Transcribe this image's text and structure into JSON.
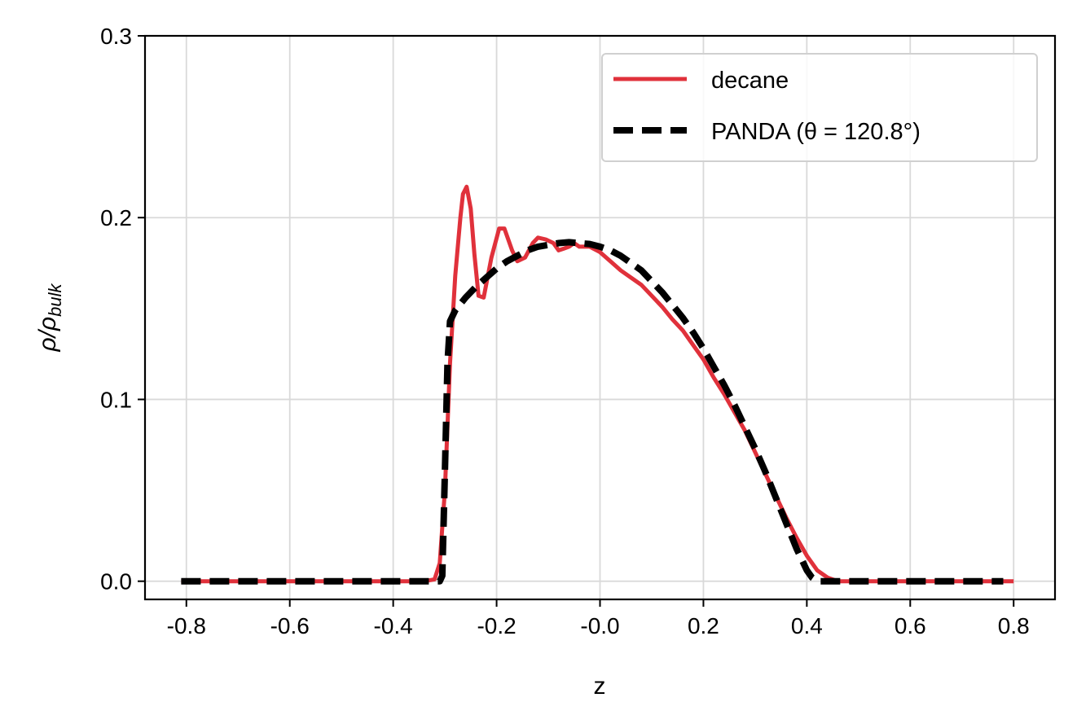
{
  "chart_data": {
    "type": "line",
    "xlabel": "z",
    "ylabel": {
      "main": "ρ/ρ",
      "sub": "bulk"
    },
    "xlim": [
      -0.88,
      0.88
    ],
    "ylim": [
      -0.01,
      0.3
    ],
    "xticks": [
      -0.8,
      -0.6,
      -0.4,
      -0.2,
      -0.0,
      0.2,
      0.4,
      0.6,
      0.8
    ],
    "xtick_labels": [
      "-0.8",
      "-0.6",
      "-0.4",
      "-0.2",
      "-0.0",
      "0.2",
      "0.4",
      "0.6",
      "0.8"
    ],
    "yticks": [
      0.0,
      0.1,
      0.2,
      0.3
    ],
    "ytick_labels": [
      "0.0",
      "0.1",
      "0.2",
      "0.3"
    ],
    "grid": true,
    "legend_position": "top-right",
    "series": [
      {
        "name": "decane",
        "color": "#e0313b",
        "style": "solid",
        "x": [
          -0.81,
          -0.34,
          -0.32,
          -0.31,
          -0.3,
          -0.29,
          -0.28,
          -0.27,
          -0.265,
          -0.258,
          -0.25,
          -0.243,
          -0.235,
          -0.225,
          -0.21,
          -0.195,
          -0.185,
          -0.17,
          -0.16,
          -0.145,
          -0.13,
          -0.12,
          -0.105,
          -0.09,
          -0.08,
          -0.07,
          -0.06,
          -0.05,
          -0.04,
          -0.02,
          0.0,
          0.02,
          0.04,
          0.06,
          0.08,
          0.1,
          0.12,
          0.14,
          0.16,
          0.18,
          0.2,
          0.22,
          0.24,
          0.26,
          0.28,
          0.3,
          0.32,
          0.34,
          0.36,
          0.38,
          0.4,
          0.42,
          0.44,
          0.46,
          0.48,
          0.8
        ],
        "y": [
          0.0,
          0.0,
          0.001,
          0.01,
          0.05,
          0.12,
          0.168,
          0.2,
          0.213,
          0.217,
          0.205,
          0.18,
          0.157,
          0.156,
          0.178,
          0.194,
          0.194,
          0.182,
          0.176,
          0.178,
          0.186,
          0.189,
          0.188,
          0.186,
          0.182,
          0.183,
          0.184,
          0.186,
          0.184,
          0.184,
          0.181,
          0.176,
          0.171,
          0.167,
          0.163,
          0.157,
          0.151,
          0.144,
          0.138,
          0.13,
          0.122,
          0.112,
          0.103,
          0.093,
          0.083,
          0.071,
          0.059,
          0.047,
          0.035,
          0.024,
          0.014,
          0.006,
          0.002,
          0.0,
          0.0,
          0.0
        ]
      },
      {
        "name": "PANDA (θ = 120.8°)",
        "color": "#000000",
        "style": "dashed",
        "x": [
          -0.81,
          -0.31,
          -0.305,
          -0.3,
          -0.295,
          -0.29,
          -0.28,
          -0.26,
          -0.24,
          -0.22,
          -0.2,
          -0.18,
          -0.16,
          -0.14,
          -0.12,
          -0.1,
          -0.08,
          -0.06,
          -0.04,
          -0.02,
          0.0,
          0.02,
          0.04,
          0.06,
          0.08,
          0.1,
          0.12,
          0.14,
          0.16,
          0.18,
          0.2,
          0.22,
          0.24,
          0.26,
          0.28,
          0.3,
          0.32,
          0.34,
          0.36,
          0.38,
          0.4,
          0.41,
          0.42,
          0.78
        ],
        "y": [
          0.0,
          0.0,
          0.003,
          0.06,
          0.12,
          0.143,
          0.149,
          0.156,
          0.162,
          0.167,
          0.172,
          0.176,
          0.179,
          0.182,
          0.184,
          0.185,
          0.186,
          0.1865,
          0.186,
          0.1855,
          0.184,
          0.182,
          0.179,
          0.175,
          0.171,
          0.165,
          0.159,
          0.152,
          0.145,
          0.137,
          0.128,
          0.118,
          0.108,
          0.097,
          0.085,
          0.073,
          0.06,
          0.046,
          0.032,
          0.018,
          0.006,
          0.002,
          0.0,
          0.0
        ]
      }
    ]
  }
}
